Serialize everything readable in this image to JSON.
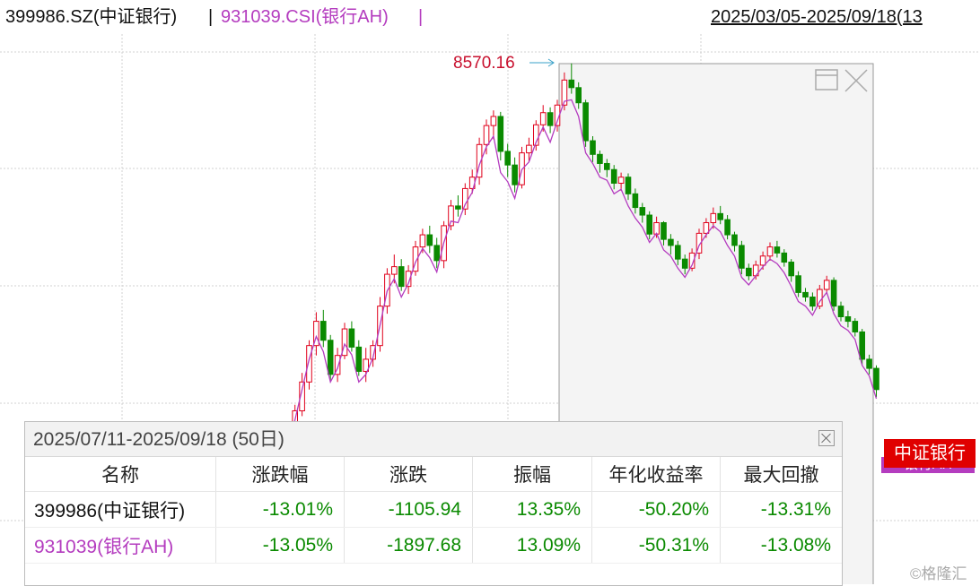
{
  "topbar": {
    "code1": "399986.SZ(中证银行)",
    "separator": "|",
    "code2": "931039.CSI(银行AH)",
    "date_range": "2025/03/05-2025/09/18(13"
  },
  "peak_label": "8570.16",
  "stats": {
    "title": "2025/07/11-2025/09/18 (50日)",
    "columns": [
      "名称",
      "涨跌幅",
      "涨跌",
      "振幅",
      "年化收益率",
      "最大回撤"
    ],
    "rows": [
      {
        "name": "399986(中证银行)",
        "pct": "-13.01%",
        "change": "-1105.94",
        "amplitude": "13.35%",
        "annualized": "-50.20%",
        "max_drawdown": "-13.31%"
      },
      {
        "name": "931039(银行AH)",
        "pct": "-13.05%",
        "change": "-1897.68",
        "amplitude": "13.09%",
        "annualized": "-50.31%",
        "max_drawdown": "-13.08%"
      }
    ]
  },
  "legend": {
    "series1": "中证银行",
    "series2": "银行AH"
  },
  "watermark": "©格隆汇",
  "colors": {
    "up": "#e0001b",
    "down": "#0a8a00",
    "line2": "#b43cbf"
  },
  "chart_data": {
    "type": "line",
    "series": [
      {
        "name": "中证银行",
        "style": "candlestick",
        "values": [
          [
            8022,
            8030,
            7995,
            8045
          ],
          [
            8030,
            8040,
            8020,
            8055
          ],
          [
            8040,
            8070,
            8035,
            8085
          ],
          [
            8070,
            8112,
            8062,
            8120
          ],
          [
            8112,
            8150,
            8105,
            8162
          ],
          [
            8150,
            8198,
            8140,
            8205
          ],
          [
            8198,
            8230,
            8185,
            8242
          ],
          [
            8230,
            8205,
            8196,
            8245
          ],
          [
            8205,
            8160,
            8150,
            8212
          ],
          [
            8160,
            8185,
            8150,
            8195
          ],
          [
            8185,
            8220,
            8180,
            8228
          ],
          [
            8220,
            8196,
            8190,
            8230
          ],
          [
            8196,
            8164,
            8158,
            8205
          ],
          [
            8164,
            8180,
            8150,
            8195
          ],
          [
            8180,
            8198,
            8170,
            8205
          ],
          [
            8198,
            8250,
            8190,
            8262
          ],
          [
            8250,
            8292,
            8240,
            8300
          ],
          [
            8292,
            8302,
            8280,
            8318
          ],
          [
            8302,
            8276,
            8270,
            8312
          ],
          [
            8276,
            8296,
            8266,
            8304
          ],
          [
            8296,
            8328,
            8290,
            8336
          ],
          [
            8328,
            8344,
            8320,
            8352
          ],
          [
            8344,
            8330,
            8320,
            8356
          ],
          [
            8330,
            8310,
            8300,
            8340
          ],
          [
            8310,
            8356,
            8300,
            8362
          ],
          [
            8356,
            8382,
            8350,
            8390
          ],
          [
            8382,
            8378,
            8368,
            8396
          ],
          [
            8378,
            8405,
            8370,
            8412
          ],
          [
            8405,
            8420,
            8398,
            8430
          ],
          [
            8420,
            8463,
            8410,
            8472
          ],
          [
            8463,
            8488,
            8450,
            8496
          ],
          [
            8488,
            8500,
            8470,
            8508
          ],
          [
            8500,
            8454,
            8442,
            8506
          ],
          [
            8454,
            8436,
            8420,
            8464
          ],
          [
            8436,
            8410,
            8400,
            8446
          ],
          [
            8410,
            8452,
            8405,
            8460
          ],
          [
            8452,
            8462,
            8440,
            8472
          ],
          [
            8462,
            8489,
            8455,
            8495
          ],
          [
            8489,
            8505,
            8480,
            8515
          ],
          [
            8505,
            8488,
            8478,
            8512
          ],
          [
            8488,
            8515,
            8480,
            8522
          ],
          [
            8515,
            8548,
            8508,
            8558
          ],
          [
            8548,
            8538,
            8530,
            8570
          ],
          [
            8538,
            8518,
            8510,
            8545
          ],
          [
            8518,
            8468,
            8460,
            8522
          ],
          [
            8468,
            8450,
            8440,
            8474
          ],
          [
            8450,
            8438,
            8426,
            8455
          ],
          [
            8438,
            8430,
            8420,
            8444
          ],
          [
            8430,
            8412,
            8404,
            8436
          ],
          [
            8412,
            8420,
            8402,
            8426
          ],
          [
            8420,
            8398,
            8390,
            8425
          ],
          [
            8398,
            8380,
            8372,
            8405
          ],
          [
            8380,
            8370,
            8360,
            8386
          ],
          [
            8370,
            8345,
            8338,
            8375
          ],
          [
            8345,
            8360,
            8340,
            8368
          ],
          [
            8360,
            8338,
            8330,
            8362
          ],
          [
            8338,
            8330,
            8318,
            8345
          ],
          [
            8330,
            8312,
            8304,
            8336
          ],
          [
            8312,
            8300,
            8292,
            8318
          ],
          [
            8300,
            8320,
            8296,
            8326
          ],
          [
            8320,
            8346,
            8312,
            8352
          ],
          [
            8346,
            8360,
            8340,
            8366
          ],
          [
            8360,
            8372,
            8352,
            8380
          ],
          [
            8372,
            8364,
            8358,
            8382
          ],
          [
            8364,
            8344,
            8338,
            8370
          ],
          [
            8344,
            8330,
            8322,
            8348
          ],
          [
            8330,
            8300,
            8292,
            8336
          ],
          [
            8300,
            8290,
            8284,
            8306
          ],
          [
            8290,
            8304,
            8285,
            8310
          ],
          [
            8304,
            8316,
            8298,
            8322
          ],
          [
            8316,
            8328,
            8310,
            8334
          ],
          [
            8328,
            8320,
            8314,
            8336
          ],
          [
            8320,
            8308,
            8302,
            8325
          ],
          [
            8308,
            8290,
            8282,
            8312
          ],
          [
            8290,
            8268,
            8262,
            8296
          ],
          [
            8268,
            8262,
            8256,
            8274
          ],
          [
            8262,
            8250,
            8244,
            8268
          ],
          [
            8250,
            8272,
            8246,
            8278
          ],
          [
            8272,
            8284,
            8266,
            8290
          ],
          [
            8284,
            8250,
            8244,
            8288
          ],
          [
            8250,
            8236,
            8230,
            8256
          ],
          [
            8236,
            8230,
            8222,
            8244
          ],
          [
            8230,
            8216,
            8210,
            8234
          ],
          [
            8216,
            8180,
            8172,
            8220
          ],
          [
            8180,
            8168,
            8160,
            8186
          ],
          [
            8168,
            8140,
            8130,
            8172
          ]
        ]
      },
      {
        "name": "银行AH",
        "style": "line",
        "values": [
          8020,
          8036,
          8060,
          8100,
          8140,
          8180,
          8210,
          8190,
          8150,
          8168,
          8200,
          8186,
          8150,
          8160,
          8182,
          8225,
          8270,
          8286,
          8262,
          8280,
          8308,
          8326,
          8314,
          8295,
          8334,
          8362,
          8360,
          8384,
          8400,
          8436,
          8460,
          8474,
          8426,
          8414,
          8392,
          8430,
          8440,
          8466,
          8486,
          8466,
          8494,
          8520,
          8522,
          8500,
          8452,
          8438,
          8420,
          8416,
          8398,
          8404,
          8382,
          8366,
          8354,
          8334,
          8346,
          8324,
          8316,
          8300,
          8288,
          8304,
          8330,
          8344,
          8356,
          8348,
          8330,
          8316,
          8288,
          8278,
          8290,
          8302,
          8312,
          8306,
          8294,
          8276,
          8256,
          8250,
          8238,
          8256,
          8268,
          8240,
          8224,
          8218,
          8206,
          8172,
          8158,
          8128
        ]
      }
    ],
    "peak": 8570.16,
    "start_date": "2025/03/05",
    "end_date": "2025/09/18",
    "selection_start": "2025/07/11",
    "selection_end": "2025/09/18",
    "grid": true
  }
}
